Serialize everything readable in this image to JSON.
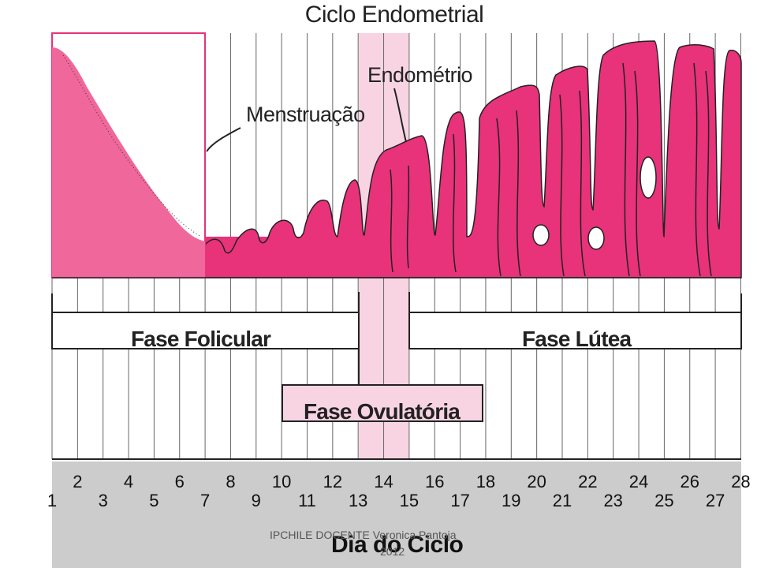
{
  "title": "Ciclo Endometrial",
  "labels": {
    "endometrio": "Endométrio",
    "menstruacao": "Menstruação"
  },
  "phases": {
    "folicular": "Fase Folicular",
    "lutea": "Fase Lútea",
    "ovulatoria": "Fase Ovulatória"
  },
  "axis": {
    "title": "Dia do Ciclo",
    "days": [
      "1",
      "2",
      "3",
      "4",
      "5",
      "6",
      "7",
      "8",
      "9",
      "10",
      "11",
      "12",
      "13",
      "14",
      "15",
      "16",
      "17",
      "18",
      "19",
      "20",
      "21",
      "22",
      "23",
      "24",
      "25",
      "26",
      "27",
      "28"
    ]
  },
  "footer": {
    "watermark_line1": "IPCHILE  DOCENTE Veronica Pantoja",
    "watermark_line2": "2012"
  },
  "colors": {
    "endometrium": "#e8327a",
    "menstruation_box": "#f0679b",
    "ovulation_band": "#f8d4e3",
    "bar_fill": "#ffffff",
    "axis_band": "#cccccc",
    "lines": "#222222"
  }
}
